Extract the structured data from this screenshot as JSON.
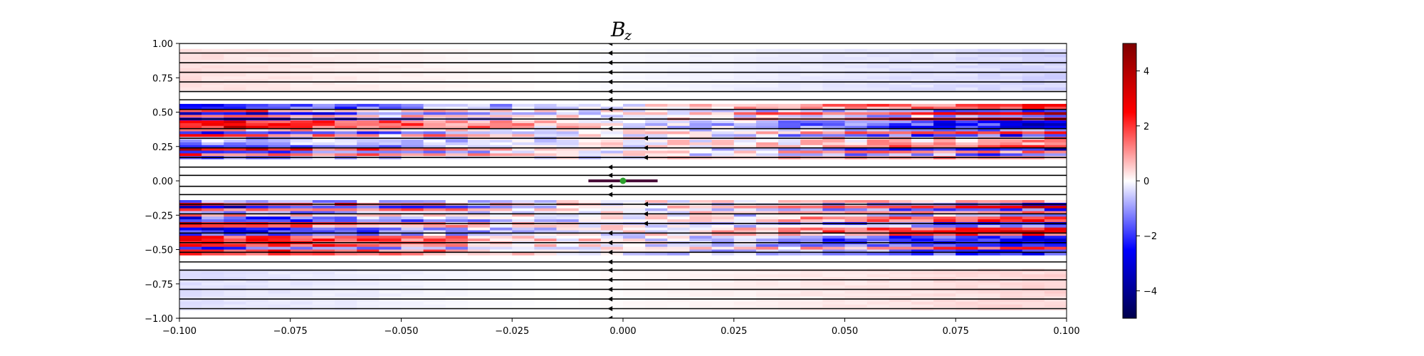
{
  "chart_data": {
    "type": "heatmap",
    "title": "B",
    "title_subscript": "z",
    "xlabel": "",
    "ylabel": "",
    "xlim": [
      -0.1,
      0.1
    ],
    "ylim": [
      -1.0,
      1.0
    ],
    "x_ticks": [
      "−0.100",
      "−0.075",
      "−0.050",
      "−0.025",
      "0.000",
      "0.025",
      "0.050",
      "0.075",
      "0.100"
    ],
    "x_tick_values": [
      -0.1,
      -0.075,
      -0.05,
      -0.025,
      0.0,
      0.025,
      0.05,
      0.075,
      0.1
    ],
    "y_ticks": [
      "1.00",
      "0.75",
      "0.50",
      "0.25",
      "0.00",
      "−0.25",
      "−0.50",
      "−0.75",
      "−1.00"
    ],
    "y_tick_values": [
      1.0,
      0.75,
      0.5,
      0.25,
      0.0,
      -0.25,
      -0.5,
      -0.75,
      -1.0
    ],
    "colormap": "seismic",
    "colorbar": {
      "range": [
        -5,
        5
      ],
      "ticks": [
        "4",
        "2",
        "0",
        "−2",
        "−4"
      ],
      "tick_values": [
        4,
        2,
        0,
        -2,
        -4
      ]
    },
    "field_bands": [
      {
        "y_range": [
          0.65,
          0.95
        ],
        "left_value": 0.3,
        "right_value": -0.4,
        "note": "faint"
      },
      {
        "y_range": [
          0.15,
          0.55
        ],
        "left_value": 2.5,
        "right_value": -2.5,
        "note": "striped, alternating sign"
      },
      {
        "y_range": [
          -0.55,
          -0.15
        ],
        "left_value": -2.5,
        "right_value": 2.5,
        "note": "striped, alternating sign"
      },
      {
        "y_range": [
          -0.95,
          -0.65
        ],
        "left_value": -0.3,
        "right_value": 0.4,
        "note": "faint"
      }
    ],
    "streamlines": {
      "color": "#000000",
      "direction": "negative x",
      "y_positions": [
        1.0,
        0.93,
        0.86,
        0.79,
        0.72,
        0.65,
        0.59,
        0.52,
        0.45,
        0.38,
        0.31,
        0.24,
        0.17,
        0.1,
        0.04,
        -0.04,
        -0.1,
        -0.17,
        -0.24,
        -0.31,
        -0.38,
        -0.45,
        -0.52,
        -0.59,
        -0.65,
        -0.72,
        -0.79,
        -0.86,
        -0.93,
        -1.0
      ]
    },
    "center_marker": {
      "x": 0.0,
      "y": 0.0,
      "color": "#2ca02c"
    },
    "center_segment": {
      "x_range": [
        -0.0078,
        0.0078
      ],
      "y": 0.0,
      "color": "#4b0f3a"
    }
  }
}
